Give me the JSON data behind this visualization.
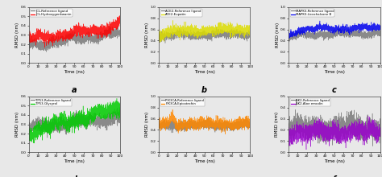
{
  "panels": [
    {
      "label": "a",
      "legend": [
        "JCL-Reference ligand",
        "JCL-Hydroxygenkwanin"
      ],
      "colors": [
        "#808080",
        "#ff0000"
      ],
      "ylabel": "RMSD (nm)",
      "xlabel": "Time (ns)",
      "ylim": [
        0.0,
        0.6
      ],
      "yticks": [
        0.0,
        0.1,
        0.2,
        0.3,
        0.4,
        0.5,
        0.6
      ],
      "ref_mean": 0.185,
      "ref_slope": 0.0009,
      "drug_mean": 0.255,
      "drug_slope": 0.0008,
      "ref_noise": 0.025,
      "drug_noise": 0.028
    },
    {
      "label": "b",
      "legend": [
        "ACE2-Reference ligand",
        "ACE2-Eupatin"
      ],
      "colors": [
        "#808080",
        "#dddd00"
      ],
      "ylabel": "RMSD (nm)",
      "xlabel": "Time (ns)",
      "ylim": [
        0.0,
        1.0
      ],
      "yticks": [
        0.0,
        0.2,
        0.4,
        0.6,
        0.8,
        1.0
      ],
      "ref_mean": 0.46,
      "ref_slope": 0.0002,
      "drug_mean": 0.5,
      "drug_slope": 0.0003,
      "ref_noise": 0.035,
      "drug_noise": 0.045
    },
    {
      "label": "c",
      "legend": [
        "MAPK3-Reference ligand",
        "MAPK3-Licochalcone B"
      ],
      "colors": [
        "#808080",
        "#0000ee"
      ],
      "ylabel": "RMSD (nm)",
      "xlabel": "Time (ns)",
      "ylim": [
        0.0,
        1.0
      ],
      "yticks": [
        0.0,
        0.2,
        0.4,
        0.6,
        0.8,
        1.0
      ],
      "ref_mean": 0.43,
      "ref_slope": 0.0003,
      "drug_mean": 0.48,
      "drug_slope": 0.0003,
      "ref_noise": 0.03,
      "drug_noise": 0.03
    },
    {
      "label": "d",
      "legend": [
        "TP53-Reference ligand",
        "TP53-Glycyrol"
      ],
      "colors": [
        "#808080",
        "#00cc00"
      ],
      "ylabel": "RMSD (nm)",
      "xlabel": "Time (ns)",
      "ylim": [
        0.0,
        0.6
      ],
      "yticks": [
        0.0,
        0.1,
        0.2,
        0.3,
        0.4,
        0.5,
        0.6
      ],
      "ref_mean": 0.265,
      "ref_slope": 0.0005,
      "drug_mean": 0.215,
      "drug_slope": 0.0012,
      "ref_noise": 0.035,
      "drug_noise": 0.042
    },
    {
      "label": "e",
      "legend": [
        "PIK3CA-Reference ligand",
        "PIK3CA-Epicatechin"
      ],
      "colors": [
        "#808080",
        "#ff8800"
      ],
      "ylabel": "RMSD (nm)",
      "xlabel": "Time (ns)",
      "ylim": [
        0.0,
        1.0
      ],
      "yticks": [
        0.0,
        0.2,
        0.4,
        0.6,
        0.8,
        1.0
      ],
      "ref_mean": 0.48,
      "ref_slope": 0.0001,
      "drug_mean": 0.5,
      "drug_slope": 0.0001,
      "ref_noise": 0.04,
      "drug_noise": 0.05
    },
    {
      "label": "f",
      "legend": [
        "JAK2-Reference ligand",
        "JAK2-Aloe emodin"
      ],
      "colors": [
        "#808080",
        "#9900cc"
      ],
      "ylabel": "RMSD (nm)",
      "xlabel": "Time (ns)",
      "ylim": [
        0.0,
        0.5
      ],
      "yticks": [
        0.0,
        0.1,
        0.2,
        0.3,
        0.4,
        0.5
      ],
      "ref_mean": 0.215,
      "ref_slope": 0.0,
      "drug_mean": 0.175,
      "drug_slope": 0.0001,
      "ref_noise": 0.05,
      "drug_noise": 0.04
    }
  ],
  "bg_color": "#e8e8e8",
  "figsize": [
    4.74,
    2.2
  ],
  "dpi": 100
}
